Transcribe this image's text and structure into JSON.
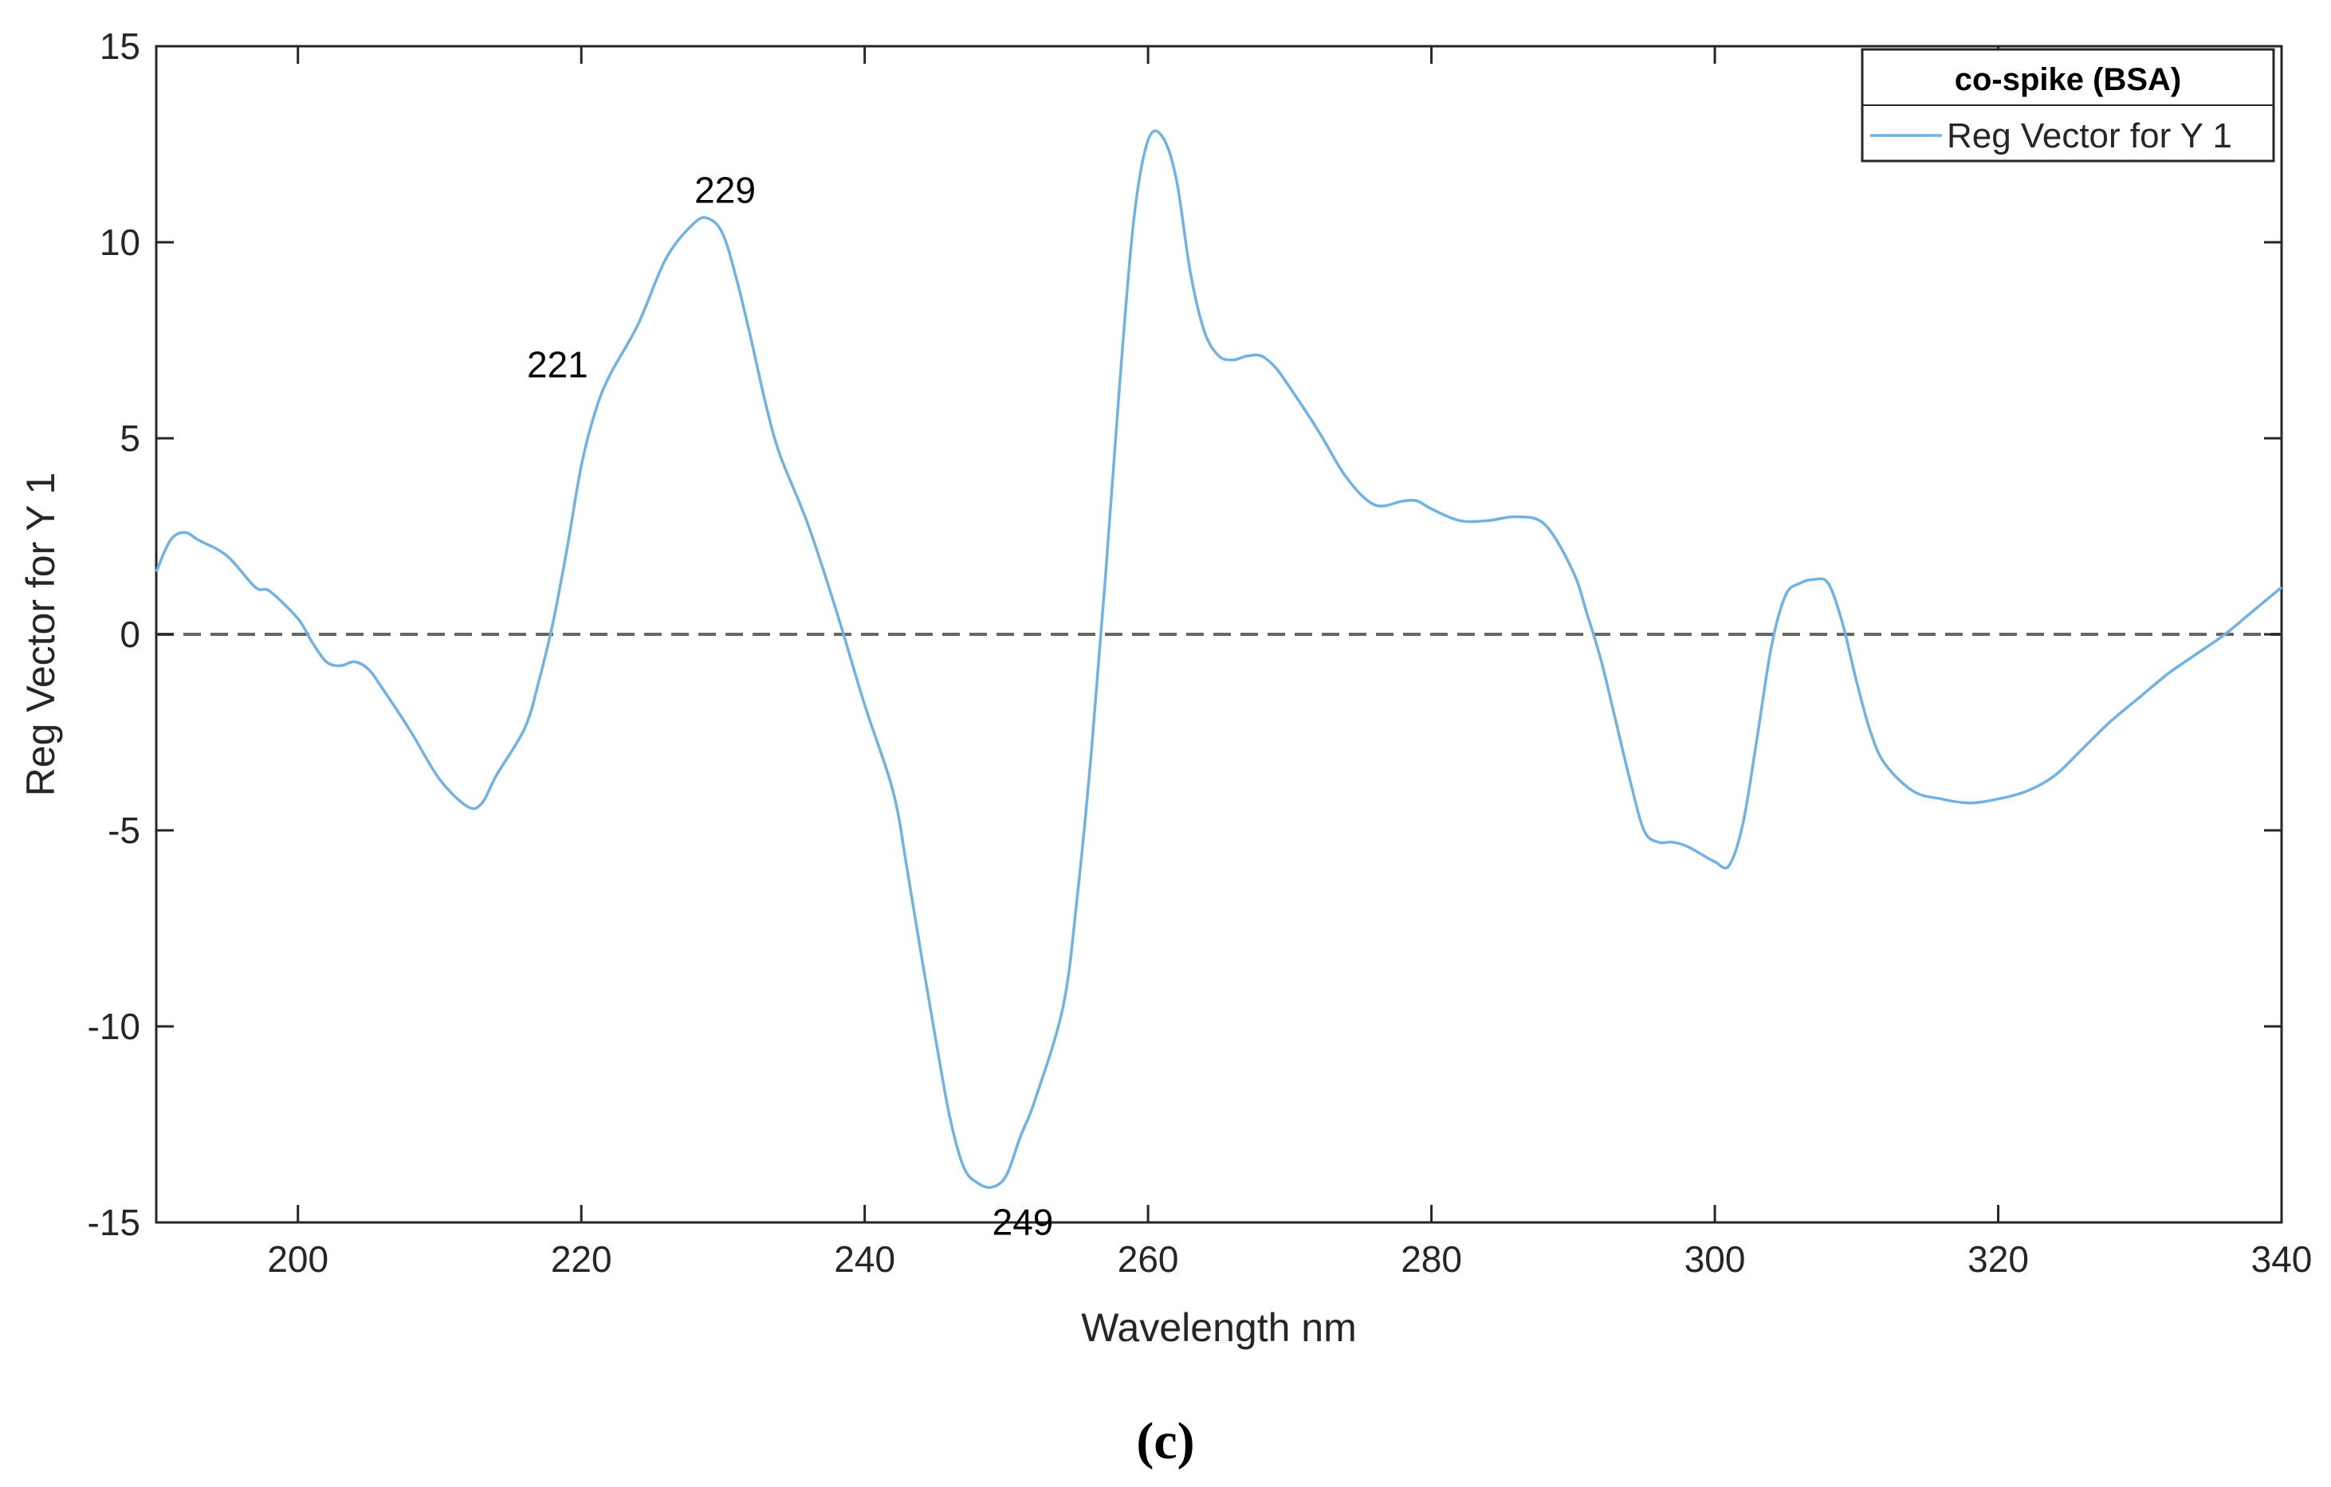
{
  "chart_data": {
    "type": "line",
    "xlabel": "Wavelength nm",
    "ylabel": "Reg Vector for Y 1",
    "xlim": [
      190,
      340
    ],
    "ylim": [
      -15,
      15
    ],
    "x_ticks": [
      200,
      220,
      240,
      260,
      280,
      300,
      320,
      340
    ],
    "y_ticks": [
      -15,
      -10,
      -5,
      0,
      5,
      10,
      15
    ],
    "grid": false,
    "legend": {
      "title": "co-spike (BSA)",
      "placement": "top-right",
      "entries": [
        "Reg Vector for Y 1"
      ]
    },
    "reference_line": {
      "y": 0,
      "style": "dashed",
      "color": "#666666"
    },
    "series": [
      {
        "name": "Reg Vector for Y 1",
        "color": "#6fb2e3",
        "x": [
          190,
          191,
          192,
          193,
          195,
          197,
          198,
          200,
          201,
          202,
          203,
          204,
          205,
          206,
          208,
          210,
          212,
          213,
          214,
          216,
          217,
          218,
          219,
          220,
          221,
          222,
          224,
          226,
          228,
          229,
          230,
          231,
          232,
          233,
          234,
          236,
          238,
          240,
          242,
          243,
          244,
          245,
          246,
          247,
          248,
          249,
          250,
          251,
          252,
          254,
          255,
          256,
          257,
          258,
          259,
          260,
          261,
          262,
          263,
          264,
          265,
          266,
          267,
          268,
          269,
          270,
          272,
          274,
          276,
          278,
          279,
          280,
          282,
          284,
          286,
          288,
          290,
          291,
          292,
          293,
          294,
          295,
          296,
          297,
          298,
          299,
          300,
          301,
          302,
          303,
          304,
          305,
          306,
          307,
          308,
          309,
          310,
          311,
          312,
          314,
          316,
          318,
          320,
          322,
          324,
          326,
          328,
          330,
          332,
          334,
          336,
          338,
          340
        ],
        "y": [
          1.6,
          2.4,
          2.6,
          2.4,
          2.0,
          1.2,
          1.1,
          0.4,
          -0.2,
          -0.7,
          -0.8,
          -0.7,
          -0.9,
          -1.4,
          -2.5,
          -3.7,
          -4.4,
          -4.3,
          -3.6,
          -2.4,
          -1.2,
          0.3,
          2.2,
          4.3,
          5.7,
          6.6,
          7.9,
          9.6,
          10.5,
          10.6,
          10.2,
          9.0,
          7.5,
          5.9,
          4.6,
          2.8,
          0.6,
          -1.8,
          -4.0,
          -6.0,
          -8.2,
          -10.3,
          -12.3,
          -13.6,
          -14.0,
          -14.1,
          -13.8,
          -12.8,
          -11.9,
          -9.5,
          -6.7,
          -3.0,
          1.5,
          6.4,
          10.6,
          12.6,
          12.7,
          11.6,
          9.2,
          7.7,
          7.1,
          7.0,
          7.1,
          7.1,
          6.8,
          6.3,
          5.2,
          4.0,
          3.3,
          3.4,
          3.4,
          3.2,
          2.9,
          2.9,
          3.0,
          2.8,
          1.6,
          0.5,
          -0.7,
          -2.2,
          -3.7,
          -5.0,
          -5.3,
          -5.3,
          -5.4,
          -5.6,
          -5.8,
          -5.9,
          -4.8,
          -2.6,
          -0.3,
          1.0,
          1.3,
          1.4,
          1.3,
          0.3,
          -1.2,
          -2.5,
          -3.3,
          -4.0,
          -4.2,
          -4.3,
          -4.2,
          -4.0,
          -3.6,
          -2.9,
          -2.2,
          -1.6,
          -1.0,
          -0.5,
          0.0,
          0.6,
          1.2
        ]
      }
    ],
    "annotations": [
      {
        "text": "221",
        "x": 221,
        "y": 6.6
      },
      {
        "text": "229",
        "x": 229,
        "y": 10.6
      },
      {
        "text": "249",
        "x": 249,
        "y": -14.1
      }
    ]
  },
  "figure": {
    "panel_label": "(c)"
  }
}
